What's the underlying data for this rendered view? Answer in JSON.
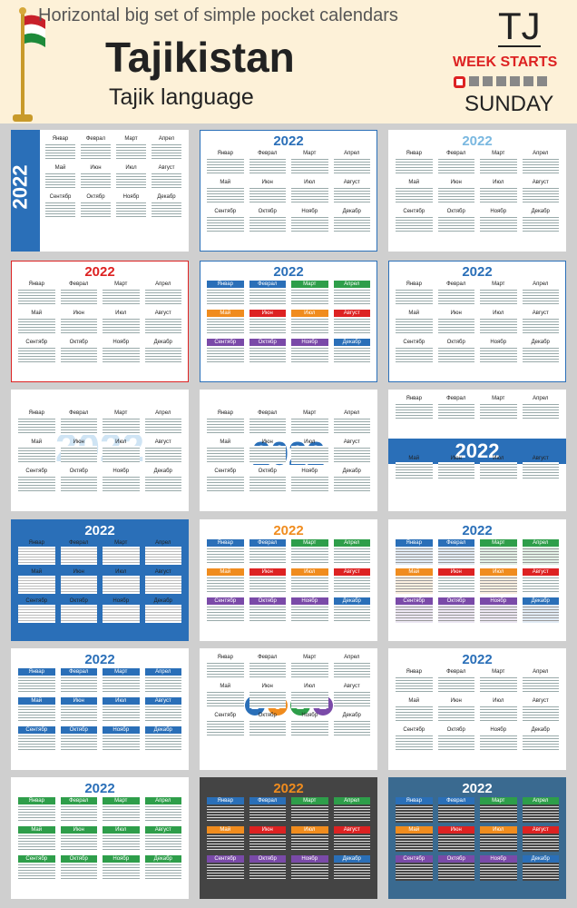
{
  "header": {
    "title": "Horizontal big set of simple pocket calendars",
    "country": "Tajikistan",
    "language": "Tajik language",
    "code": "TJ",
    "week_starts": "WEEK STARTS",
    "week_day": "SUNDAY"
  },
  "year": "2022",
  "months": [
    "Январ",
    "Феврал",
    "Март",
    "Апрел",
    "Май",
    "Июн",
    "Июл",
    "Август",
    "Сентябр",
    "Октябр",
    "Ноябр",
    "Декабр"
  ],
  "colors": {
    "blue": "#2a6fb8",
    "red": "#d22",
    "green": "#2e9e4a",
    "orange": "#f08c1e",
    "purple": "#7a4aa8"
  }
}
